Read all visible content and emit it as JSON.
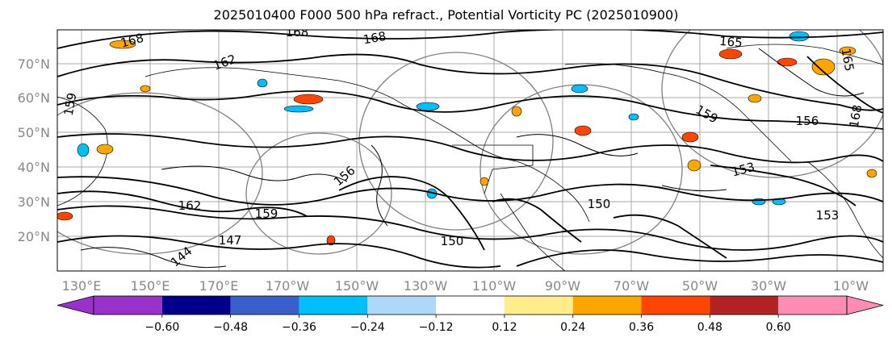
{
  "title": "2025010400 F000 500 hPa refract., Potential Vorticity PC (2025010900)",
  "map": {
    "lat_labels": [
      "70°N",
      "60°N",
      "50°N",
      "40°N",
      "30°N",
      "20°N"
    ],
    "lon_labels": [
      "130°E",
      "150°E",
      "170°E",
      "170°W",
      "150°W",
      "130°W",
      "110°W",
      "90°W",
      "70°W",
      "50°W",
      "30°W",
      "10°W"
    ],
    "contour_labels": [
      "168",
      "168",
      "168",
      "165",
      "165",
      "162",
      "162",
      "159",
      "159",
      "159",
      "156",
      "156",
      "153",
      "153",
      "150",
      "150",
      "147",
      "144",
      "168"
    ]
  },
  "colorbar": {
    "tick_labels": [
      "−0.60",
      "−0.48",
      "−0.36",
      "−0.24",
      "−0.12",
      "0.12",
      "0.24",
      "0.36",
      "0.48",
      "0.60"
    ],
    "colors": [
      "#9932cc",
      "#00008b",
      "#3a5fcd",
      "#00bfff",
      "#add8f8",
      "#ffffff",
      "#ffec8b",
      "#ffa500",
      "#ff4500",
      "#b22222",
      "#ff8cb4",
      "#ff8cb4"
    ]
  }
}
